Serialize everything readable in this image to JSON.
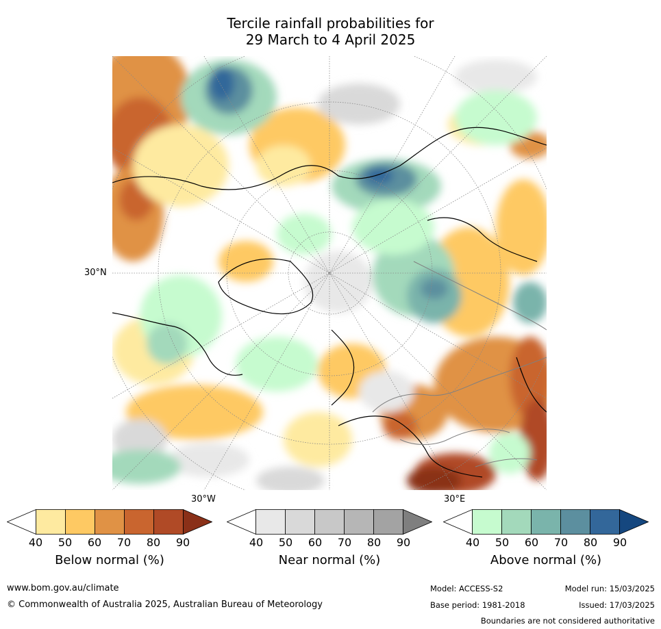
{
  "title_line1": "Tercile rainfall probabilities for",
  "title_line2": "29 March to 4 April 2025",
  "map": {
    "projection": "north-polar-stereographic",
    "lat_label": "30°N",
    "lon_labels": [
      "30°W",
      "30°E"
    ],
    "background": "#ffffff"
  },
  "colorbars": [
    {
      "title": "Below normal (%)",
      "ticks": [
        "40",
        "50",
        "60",
        "70",
        "80",
        "90"
      ],
      "colors": [
        "#ffffff",
        "#feeaa0",
        "#fec963",
        "#e09245",
        "#c9652f",
        "#b04a26",
        "#8a3018"
      ]
    },
    {
      "title": "Near normal (%)",
      "ticks": [
        "40",
        "50",
        "60",
        "70",
        "80",
        "90"
      ],
      "colors": [
        "#ffffff",
        "#e8e8e8",
        "#d9d9d9",
        "#c8c8c8",
        "#b6b6b6",
        "#a3a3a3",
        "#7f7f7f"
      ]
    },
    {
      "title": "Above normal (%)",
      "ticks": [
        "40",
        "50",
        "60",
        "70",
        "80",
        "90"
      ],
      "colors": [
        "#ffffff",
        "#c6fbcf",
        "#a3d9bb",
        "#7ab4ab",
        "#5c8f9f",
        "#33679a",
        "#15477f"
      ]
    }
  ],
  "footer": {
    "website": "www.bom.gov.au/climate",
    "copyright": "© Commonwealth of Australia 2025, Australian Bureau of Meteorology",
    "model": "Model: ACCESS-S2",
    "base_period": "Base period: 1981-2018",
    "model_run": "Model run: 15/03/2025",
    "issued": "Issued: 17/03/2025",
    "disclaimer": "Boundaries are not considered authoritative"
  }
}
